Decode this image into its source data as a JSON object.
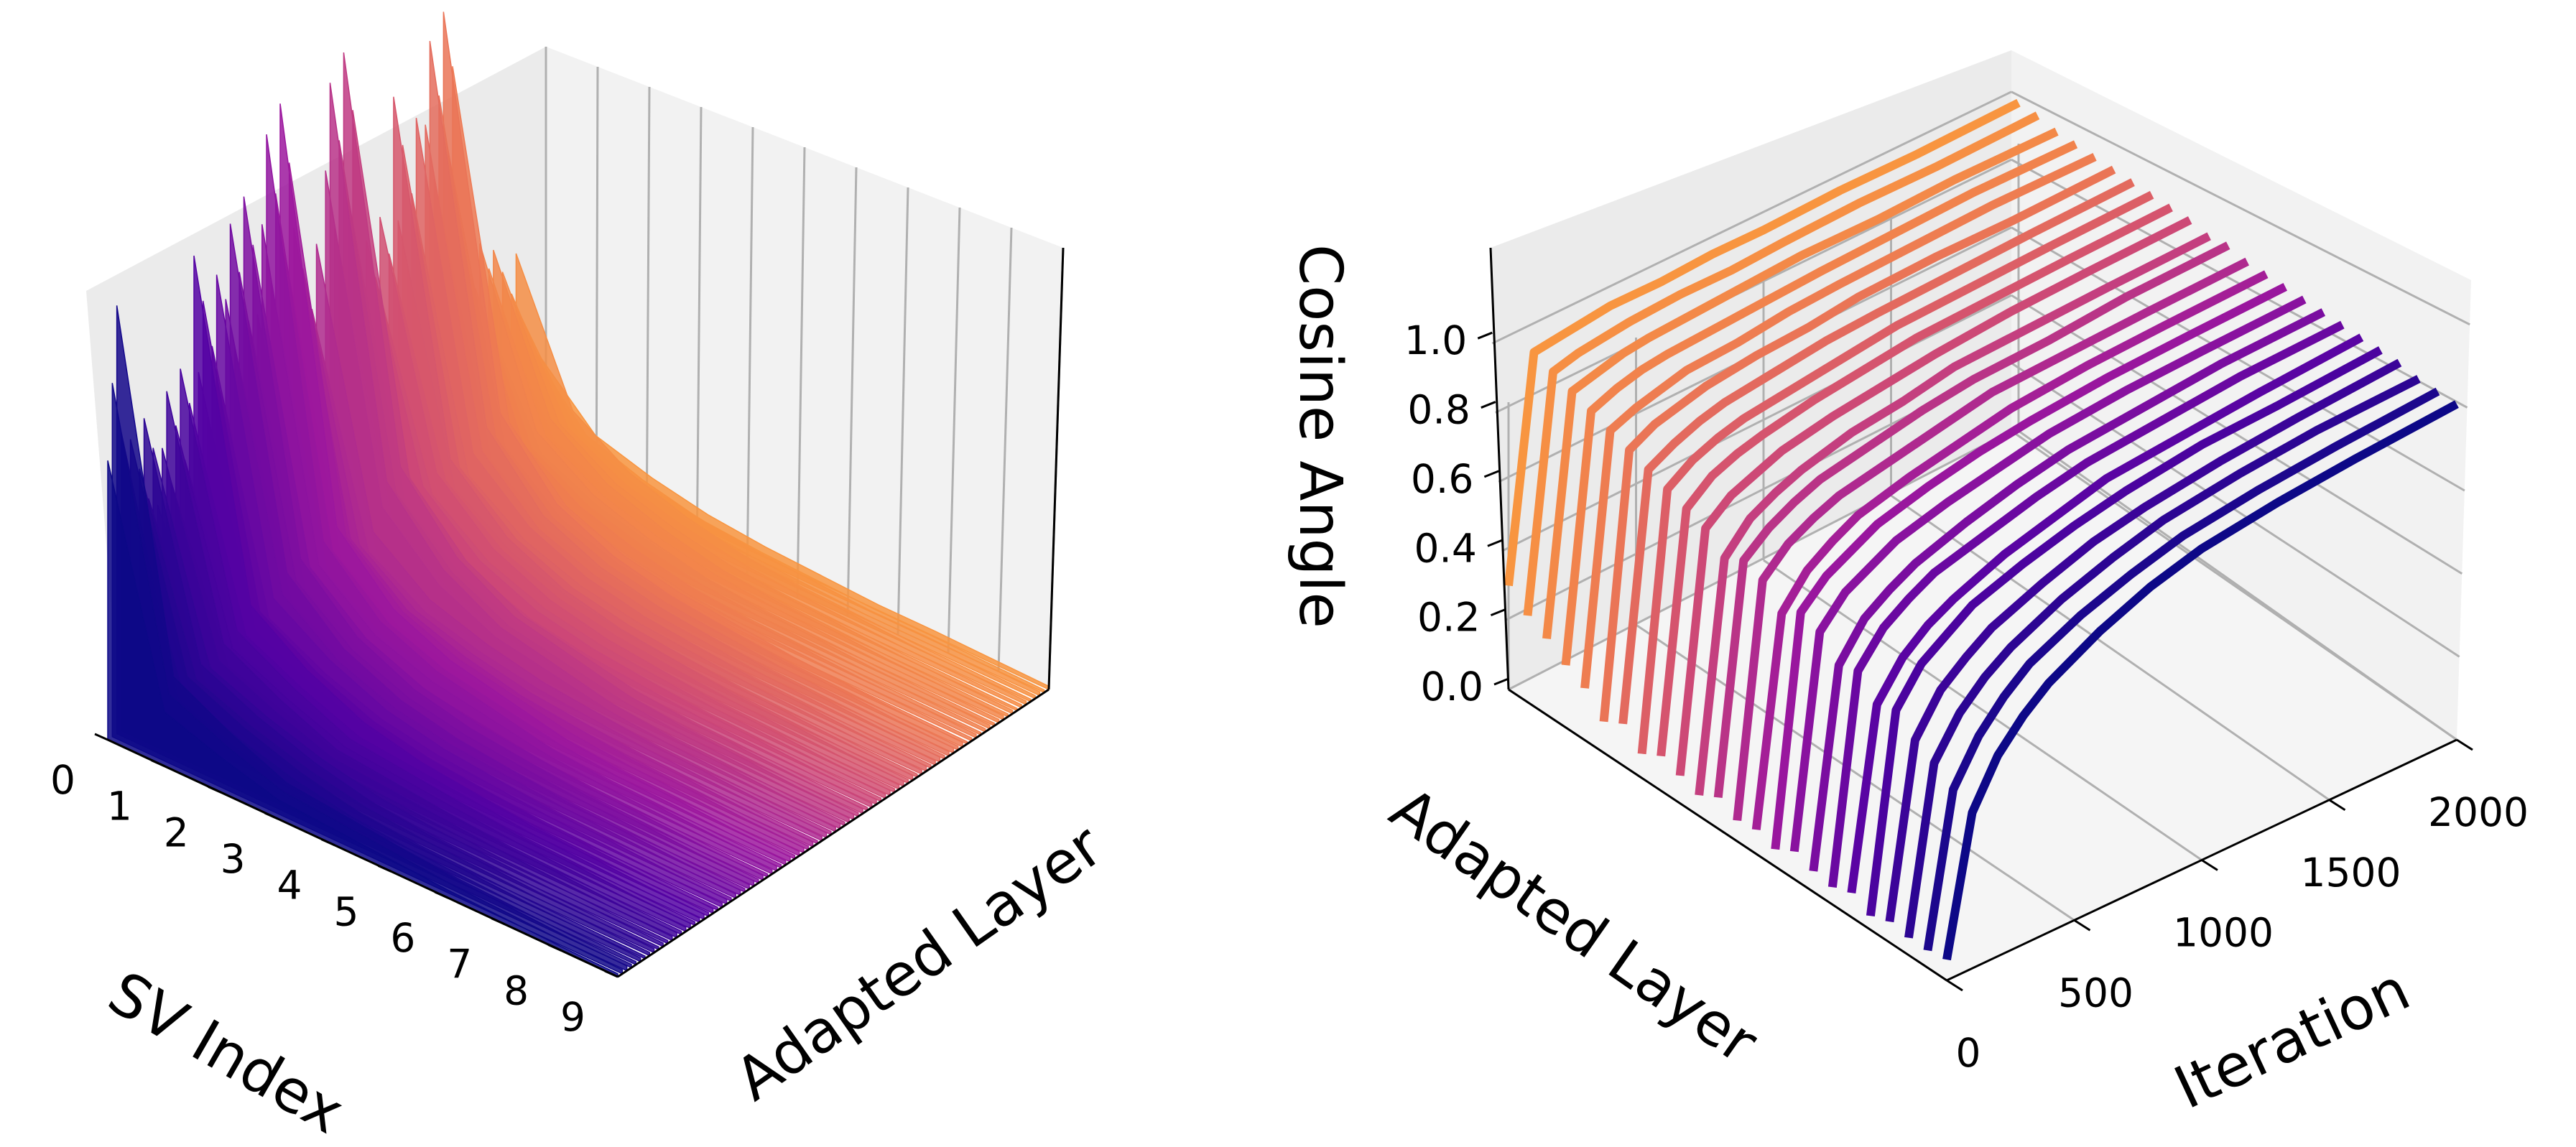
{
  "colors": {
    "pane_left": "#ebebeb",
    "pane_right": "#f2f2f2",
    "pane_floor": "#f5f5f5",
    "grid": "#b0b0b0",
    "axis": "#000000",
    "colormap": "plasma",
    "colormap_start": "#0d0887",
    "colormap_mid": "#9c179e",
    "colormap_end": "#f89540"
  },
  "chart_data": [
    {
      "type": "area",
      "title": "",
      "xlabel": "SV Index",
      "ylabel": "Adapted Layer",
      "zlabel": "",
      "x_ticks": [
        "0",
        "1",
        "2",
        "3",
        "4",
        "5",
        "6",
        "7",
        "8",
        "9"
      ],
      "y_ticks": [],
      "z_ticks": [],
      "grid": true,
      "color_by": "Adapted Layer",
      "n_layers": 96,
      "series": [
        {
          "values": [
            0.18,
            0.08,
            0.05,
            0.03,
            0.02,
            0.015,
            0.01,
            0.01,
            0.008,
            0.006
          ]
        },
        {
          "values": [
            0.36,
            0.14,
            0.08,
            0.05,
            0.03,
            0.02,
            0.015,
            0.01,
            0.008,
            0.006
          ]
        },
        {
          "values": [
            0.4,
            0.14,
            0.08,
            0.05,
            0.03,
            0.02,
            0.015,
            0.01,
            0.008,
            0.006
          ]
        },
        {
          "values": [
            0.78,
            0.2,
            0.1,
            0.06,
            0.04,
            0.03,
            0.02,
            0.015,
            0.01,
            0.008
          ]
        },
        {
          "values": [
            0.7,
            0.18,
            0.1,
            0.06,
            0.04,
            0.03,
            0.02,
            0.015,
            0.01,
            0.008
          ]
        },
        {
          "values": [
            0.55,
            0.18,
            0.1,
            0.06,
            0.04,
            0.03,
            0.02,
            0.015,
            0.01,
            0.008
          ]
        },
        {
          "values": [
            0.82,
            0.22,
            0.12,
            0.07,
            0.05,
            0.03,
            0.02,
            0.015,
            0.01,
            0.008
          ]
        },
        {
          "values": [
            0.6,
            0.16,
            0.09,
            0.06,
            0.04,
            0.03,
            0.02,
            0.015,
            0.01,
            0.008
          ]
        },
        {
          "values": [
            0.84,
            0.2,
            0.11,
            0.07,
            0.05,
            0.03,
            0.02,
            0.015,
            0.01,
            0.008
          ]
        },
        {
          "values": [
            0.7,
            0.18,
            0.1,
            0.06,
            0.04,
            0.03,
            0.02,
            0.015,
            0.01,
            0.008
          ]
        },
        {
          "values": [
            0.66,
            0.16,
            0.1,
            0.06,
            0.04,
            0.03,
            0.02,
            0.015,
            0.01,
            0.008
          ]
        },
        {
          "values": [
            0.52,
            0.14,
            0.09,
            0.05,
            0.04,
            0.03,
            0.02,
            0.015,
            0.01,
            0.008
          ]
        },
        {
          "values": [
            0.46,
            0.12,
            0.08,
            0.05,
            0.03,
            0.02,
            0.015,
            0.01,
            0.008,
            0.006
          ]
        },
        {
          "values": [
            0.72,
            0.14,
            0.09,
            0.05,
            0.04,
            0.03,
            0.02,
            0.015,
            0.01,
            0.008
          ]
        }
      ]
    },
    {
      "type": "line",
      "title": "",
      "xlabel": "Iteration",
      "ylabel": "Adapted Layer",
      "zlabel": "Cosine Angle",
      "x_ticks": [
        "0",
        "500",
        "1000",
        "1500",
        "2000"
      ],
      "y_ticks": [],
      "z_ticks": [
        "0.0",
        "0.2",
        "0.4",
        "0.6",
        "0.8",
        "1.0"
      ],
      "xlim": [
        0,
        2000
      ],
      "zlim": [
        0,
        1.1
      ],
      "grid": true,
      "color_by": "Adapted Layer",
      "n_layers": 24,
      "series": [
        {
          "x": [
            0,
            100,
            200,
            300,
            400,
            600,
            800,
            1000,
            1300,
            1600,
            2000
          ],
          "values": [
            0.06,
            0.45,
            0.58,
            0.66,
            0.72,
            0.8,
            0.86,
            0.9,
            0.93,
            0.95,
            0.97
          ]
        },
        {
          "x": [
            0,
            100,
            200,
            300,
            400,
            600,
            800,
            1000,
            1300,
            1600,
            2000
          ],
          "values": [
            0.05,
            0.48,
            0.6,
            0.68,
            0.74,
            0.81,
            0.86,
            0.9,
            0.93,
            0.95,
            0.97
          ]
        },
        {
          "x": [
            0,
            100,
            200,
            300,
            400,
            600,
            800,
            1000,
            1300,
            1600,
            2000
          ],
          "values": [
            0.05,
            0.52,
            0.63,
            0.7,
            0.75,
            0.82,
            0.87,
            0.91,
            0.94,
            0.96,
            0.97
          ]
        },
        {
          "x": [
            0,
            100,
            200,
            300,
            400,
            600,
            800,
            1000,
            1300,
            1600,
            2000
          ],
          "values": [
            0.06,
            0.55,
            0.66,
            0.72,
            0.77,
            0.83,
            0.88,
            0.91,
            0.94,
            0.96,
            0.98
          ]
        },
        {
          "x": [
            0,
            100,
            200,
            300,
            400,
            600,
            800,
            1000,
            1300,
            1600,
            2000
          ],
          "values": [
            0.04,
            0.6,
            0.7,
            0.75,
            0.8,
            0.85,
            0.89,
            0.92,
            0.95,
            0.96,
            0.98
          ]
        },
        {
          "x": [
            0,
            100,
            200,
            300,
            400,
            600,
            800,
            1000,
            1300,
            1600,
            2000
          ],
          "values": [
            0.07,
            0.58,
            0.68,
            0.74,
            0.78,
            0.84,
            0.88,
            0.92,
            0.94,
            0.96,
            0.98
          ]
        },
        {
          "x": [
            0,
            100,
            200,
            300,
            400,
            600,
            800,
            1000,
            1300,
            1600,
            2000
          ],
          "values": [
            0.05,
            0.64,
            0.73,
            0.78,
            0.82,
            0.86,
            0.9,
            0.93,
            0.95,
            0.97,
            0.98
          ]
        },
        {
          "x": [
            0,
            100,
            200,
            300,
            400,
            600,
            800,
            1000,
            1300,
            1600,
            2000
          ],
          "values": [
            0.06,
            0.62,
            0.72,
            0.77,
            0.81,
            0.86,
            0.9,
            0.93,
            0.95,
            0.97,
            0.98
          ]
        },
        {
          "x": [
            0,
            100,
            200,
            300,
            400,
            600,
            800,
            1000,
            1300,
            1600,
            2000
          ],
          "values": [
            0.08,
            0.68,
            0.76,
            0.8,
            0.84,
            0.88,
            0.91,
            0.94,
            0.96,
            0.97,
            0.98
          ]
        },
        {
          "x": [
            0,
            100,
            200,
            300,
            400,
            600,
            800,
            1000,
            1300,
            1600,
            2000
          ],
          "values": [
            0.05,
            0.7,
            0.77,
            0.81,
            0.85,
            0.89,
            0.92,
            0.94,
            0.96,
            0.97,
            0.98
          ]
        },
        {
          "x": [
            0,
            100,
            200,
            300,
            400,
            600,
            800,
            1000,
            1300,
            1600,
            2000
          ],
          "values": [
            0.07,
            0.66,
            0.75,
            0.8,
            0.84,
            0.88,
            0.91,
            0.94,
            0.96,
            0.97,
            0.98
          ]
        },
        {
          "x": [
            0,
            100,
            200,
            300,
            400,
            600,
            800,
            1000,
            1300,
            1600,
            2000
          ],
          "values": [
            0.06,
            0.72,
            0.79,
            0.83,
            0.86,
            0.89,
            0.92,
            0.95,
            0.96,
            0.97,
            0.98
          ]
        },
        {
          "x": [
            0,
            100,
            200,
            300,
            400,
            600,
            800,
            1000,
            1300,
            1600,
            2000
          ],
          "values": [
            0.09,
            0.74,
            0.8,
            0.84,
            0.87,
            0.9,
            0.93,
            0.95,
            0.96,
            0.98,
            0.99
          ]
        },
        {
          "x": [
            0,
            100,
            200,
            300,
            400,
            600,
            800,
            1000,
            1300,
            1600,
            2000
          ],
          "values": [
            0.06,
            0.71,
            0.79,
            0.83,
            0.86,
            0.9,
            0.92,
            0.95,
            0.96,
            0.97,
            0.98
          ]
        },
        {
          "x": [
            0,
            100,
            200,
            300,
            400,
            600,
            800,
            1000,
            1300,
            1600,
            2000
          ],
          "values": [
            0.08,
            0.76,
            0.82,
            0.85,
            0.88,
            0.91,
            0.93,
            0.95,
            0.97,
            0.98,
            0.99
          ]
        },
        {
          "x": [
            0,
            100,
            200,
            300,
            400,
            600,
            800,
            1000,
            1300,
            1600,
            2000
          ],
          "values": [
            0.1,
            0.78,
            0.84,
            0.87,
            0.89,
            0.92,
            0.94,
            0.96,
            0.97,
            0.98,
            0.99
          ]
        },
        {
          "x": [
            0,
            100,
            200,
            300,
            400,
            600,
            800,
            1000,
            1300,
            1600,
            2000
          ],
          "values": [
            0.07,
            0.8,
            0.85,
            0.88,
            0.9,
            0.92,
            0.94,
            0.96,
            0.97,
            0.98,
            0.99
          ]
        },
        {
          "x": [
            0,
            100,
            200,
            300,
            400,
            600,
            800,
            1000,
            1300,
            1600,
            2000
          ],
          "values": [
            0.12,
            0.82,
            0.86,
            0.89,
            0.91,
            0.93,
            0.95,
            0.96,
            0.97,
            0.98,
            0.99
          ]
        },
        {
          "x": [
            0,
            100,
            200,
            300,
            400,
            600,
            800,
            1000,
            1300,
            1600,
            2000
          ],
          "values": [
            0.09,
            0.84,
            0.88,
            0.9,
            0.92,
            0.94,
            0.95,
            0.97,
            0.98,
            0.98,
            0.99
          ]
        },
        {
          "x": [
            0,
            100,
            200,
            300,
            400,
            600,
            800,
            1000,
            1300,
            1600,
            2000
          ],
          "values": [
            0.15,
            0.86,
            0.89,
            0.91,
            0.93,
            0.94,
            0.96,
            0.97,
            0.98,
            0.99,
            0.99
          ]
        },
        {
          "x": [
            0,
            100,
            200,
            300,
            400,
            600,
            800,
            1000,
            1300,
            1600,
            2000
          ],
          "values": [
            0.18,
            0.88,
            0.91,
            0.93,
            0.94,
            0.95,
            0.96,
            0.97,
            0.98,
            0.99,
            0.99
          ]
        },
        {
          "x": [
            0,
            100,
            200,
            300,
            400,
            600,
            800,
            1000,
            1300,
            1600,
            2000
          ],
          "values": [
            0.22,
            0.9,
            0.92,
            0.94,
            0.95,
            0.96,
            0.97,
            0.98,
            0.98,
            0.99,
            0.99
          ]
        },
        {
          "x": [
            0,
            100,
            200,
            300,
            400,
            600,
            800,
            1000,
            1300,
            1600,
            2000
          ],
          "values": [
            0.25,
            0.92,
            0.94,
            0.95,
            0.96,
            0.97,
            0.97,
            0.98,
            0.99,
            0.99,
            1.0
          ]
        },
        {
          "x": [
            0,
            100,
            200,
            300,
            400,
            600,
            800,
            1000,
            1300,
            1600,
            2000
          ],
          "values": [
            0.3,
            0.94,
            0.95,
            0.96,
            0.97,
            0.97,
            0.98,
            0.98,
            0.99,
            0.99,
            1.0
          ]
        }
      ]
    }
  ]
}
